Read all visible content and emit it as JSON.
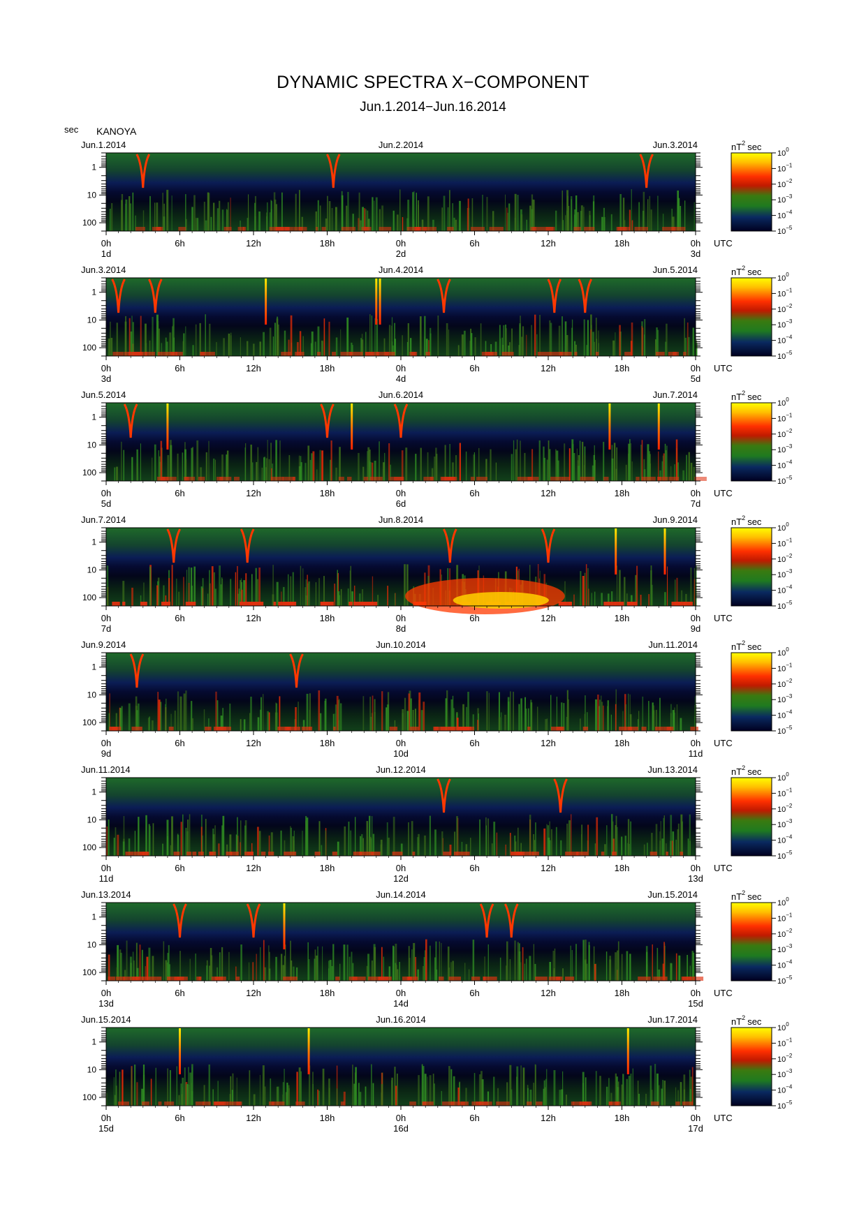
{
  "header": {
    "title": "DYNAMIC SPECTRA X−COMPONENT",
    "subtitle": "Jun.1.2014−Jun.16.2014",
    "period_unit": "sec",
    "station": "KANOYA"
  },
  "colorbar": {
    "unit_base": "nT",
    "unit_exp": "2",
    "unit_suffix": "sec",
    "base": "10",
    "exponents": [
      "0",
      "−1",
      "−2",
      "−3",
      "−4",
      "−5"
    ]
  },
  "axis": {
    "y_ticks": [
      "1",
      "10",
      "100"
    ],
    "x_hours": [
      "0h",
      "6h",
      "12h",
      "18h",
      "0h",
      "6h",
      "12h",
      "18h",
      "0h"
    ],
    "utc_label": "UTC"
  },
  "chart_data": {
    "type": "heatmap",
    "title": "DYNAMIC SPECTRA X−COMPONENT",
    "subtitle": "Jun.1.2014−Jun.16.2014",
    "ylabel": "sec",
    "y_scale": "log",
    "y_range_sec": [
      0.3,
      200
    ],
    "y_inverted": true,
    "x_unit": "UTC hours",
    "colorscale": {
      "unit": "nT^2 sec",
      "log_range": [
        -5,
        0
      ],
      "colors": [
        "#000028",
        "#0a1a6e",
        "#1a6e1a",
        "#3c9a1e",
        "#ff2800",
        "#ffaa00",
        "#ffff00"
      ]
    },
    "panels": [
      {
        "date_start": "Jun.1.2014",
        "date_mid": "Jun.2.2014",
        "date_end": "Jun.3.2014",
        "day_labels": [
          "1d",
          "2d",
          "3d"
        ],
        "pulsation_events_h": [
          3.0,
          18.5,
          44.0
        ],
        "spikes_h": [],
        "storm_level": 0.15
      },
      {
        "date_start": "Jun.3.2014",
        "date_mid": "Jun.4.2014",
        "date_end": "Jun.5.2014",
        "day_labels": [
          "3d",
          "4d",
          "5d"
        ],
        "pulsation_events_h": [
          1.0,
          4.0,
          27.5,
          36.5,
          39.0
        ],
        "spikes_h": [
          13.0,
          22.0,
          22.3
        ],
        "storm_level": 0.25
      },
      {
        "date_start": "Jun.5.2014",
        "date_mid": "Jun.6.2014",
        "date_end": "Jun.7.2014",
        "day_labels": [
          "5d",
          "6d",
          "7d"
        ],
        "pulsation_events_h": [
          2.0,
          18.0,
          24.0
        ],
        "spikes_h": [
          5.0,
          20.0,
          41.0,
          45.0
        ],
        "storm_level": 0.15
      },
      {
        "date_start": "Jun.7.2014",
        "date_mid": "Jun.8.2014",
        "date_end": "Jun.9.2014",
        "day_labels": [
          "7d",
          "8d",
          "9d"
        ],
        "pulsation_events_h": [
          5.5,
          11.5,
          28.0,
          36.0
        ],
        "spikes_h": [
          41.5,
          45.5
        ],
        "storm_level": 0.9
      },
      {
        "date_start": "Jun.9.2014",
        "date_mid": "Jun.10.2014",
        "date_end": "Jun.11.2014",
        "day_labels": [
          "9d",
          "10d",
          "11d"
        ],
        "pulsation_events_h": [
          2.5,
          15.5
        ],
        "spikes_h": [],
        "storm_level": 0.35
      },
      {
        "date_start": "Jun.11.2014",
        "date_mid": "Jun.12.2014",
        "date_end": "Jun.13.2014",
        "day_labels": [
          "11d",
          "12d",
          "13d"
        ],
        "pulsation_events_h": [
          27.5,
          37.0
        ],
        "spikes_h": [],
        "storm_level": 0.4
      },
      {
        "date_start": "Jun.13.2014",
        "date_mid": "Jun.14.2014",
        "date_end": "Jun.15.2014",
        "day_labels": [
          "13d",
          "14d",
          "15d"
        ],
        "pulsation_events_h": [
          6.0,
          12.0,
          31.0,
          33.0
        ],
        "spikes_h": [
          14.5
        ],
        "storm_level": 0.3
      },
      {
        "date_start": "Jun.15.2014",
        "date_mid": "Jun.16.2014",
        "date_end": "Jun.17.2014",
        "day_labels": [
          "15d",
          "16d",
          "17d"
        ],
        "pulsation_events_h": [],
        "spikes_h": [
          6.0,
          16.5,
          42.5
        ],
        "storm_level": 0.2
      }
    ]
  }
}
